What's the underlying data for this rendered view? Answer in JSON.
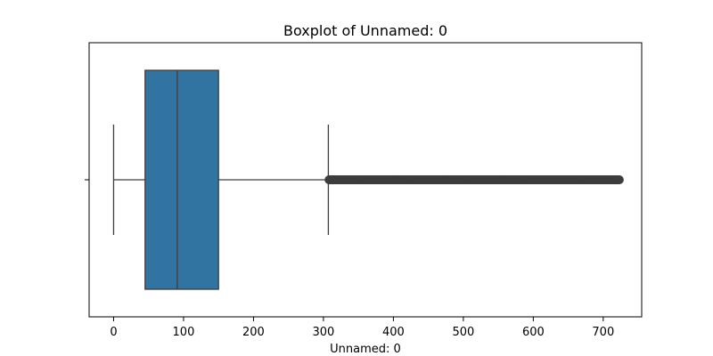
{
  "chart_data": {
    "type": "boxplot",
    "title": "Boxplot of Unnamed: 0",
    "xlabel": "Unnamed: 0",
    "ylabel": "",
    "orientation": "horizontal",
    "xlim": [
      -35,
      755
    ],
    "xticks": [
      0,
      100,
      200,
      300,
      400,
      500,
      600,
      700
    ],
    "grid": false,
    "legend": "none",
    "box": {
      "whisker_low": 0,
      "q1": 45,
      "median": 91,
      "q3": 150,
      "whisker_high": 307
    },
    "outliers": {
      "min": 308,
      "max": 723,
      "note_count_approx": "dense"
    },
    "colors": {
      "box_fill": "#3274a1",
      "lines": "#3d3d3d",
      "outlier": "#3d3d3d",
      "axes": "#000000"
    }
  }
}
